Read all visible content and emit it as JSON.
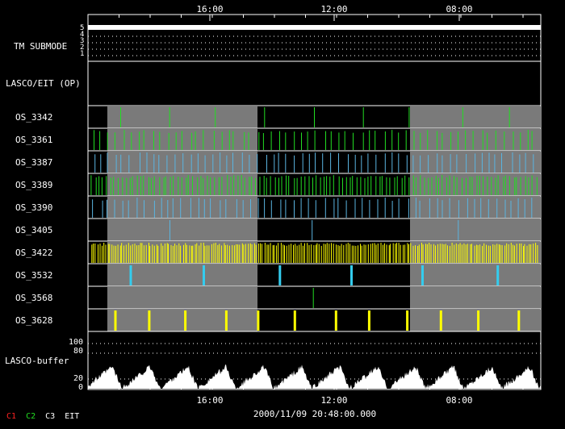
{
  "time_axis": {
    "tick_labels": [
      "16:00",
      "12:00",
      "08:00"
    ],
    "timestamp": "2000/11/09 20:48:00.000"
  },
  "tm_submode": {
    "label": "TM SUBMODE",
    "scale": [
      "5",
      "4",
      "3",
      "2",
      "1"
    ]
  },
  "lasco_eit_op": {
    "label": "LASCO/EIT (OP)"
  },
  "rows": [
    {
      "label": "OS_3342",
      "color": "#22dd22",
      "kind": "sparse",
      "count": 9
    },
    {
      "label": "OS_3361",
      "color": "#22dd22",
      "kind": "dense",
      "count": 60
    },
    {
      "label": "OS_3387",
      "color": "#5ab4e0",
      "kind": "dense",
      "count": 60
    },
    {
      "label": "OS_3389",
      "color": "#22dd22",
      "kind": "dense",
      "count": 120
    },
    {
      "label": "OS_3390",
      "color": "#5ab4e0",
      "kind": "dense",
      "count": 60
    },
    {
      "label": "OS_3405",
      "color": "#5ab4e0",
      "kind": "sparse",
      "count": 3
    },
    {
      "label": "OS_3422",
      "color": "#ffff00",
      "kind": "dense",
      "count": 220
    },
    {
      "label": "OS_3532",
      "color": "#33ccee",
      "kind": "sparse",
      "count": 6
    },
    {
      "label": "OS_3568",
      "color": "#22dd22",
      "kind": "sparse",
      "count": 1
    },
    {
      "label": "OS_3628",
      "color": "#ffff00",
      "kind": "sparse",
      "count": 12
    }
  ],
  "lasco_buffer": {
    "label": "LASCO-buffer",
    "scale": [
      "100",
      "80",
      "20",
      "0"
    ]
  },
  "legend": [
    {
      "text": "C1",
      "color": "#ff2222"
    },
    {
      "text": "C2",
      "color": "#22dd22"
    },
    {
      "text": "C3",
      "color": "#ffffff"
    },
    {
      "text": "EIT",
      "color": "#ffffff"
    }
  ],
  "colors": {
    "background": "#000000",
    "shade": "#7a7a7a",
    "frame": "#ffffff"
  }
}
